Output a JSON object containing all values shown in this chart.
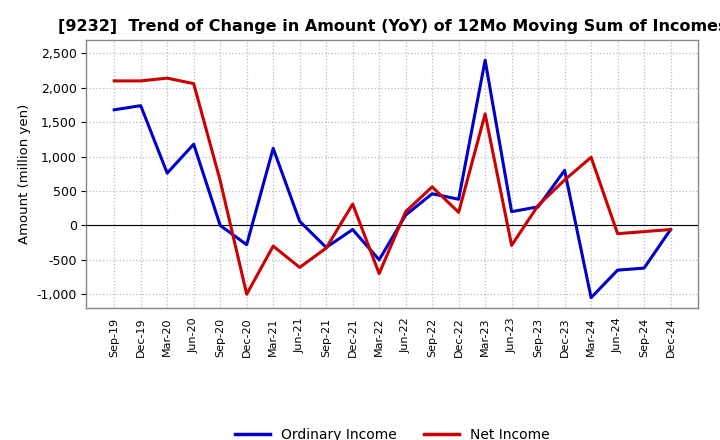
{
  "title": "[9232]  Trend of Change in Amount (YoY) of 12Mo Moving Sum of Incomes",
  "ylabel": "Amount (million yen)",
  "labels": [
    "Sep-19",
    "Dec-19",
    "Mar-20",
    "Jun-20",
    "Sep-20",
    "Dec-20",
    "Mar-21",
    "Jun-21",
    "Sep-21",
    "Dec-21",
    "Mar-22",
    "Jun-22",
    "Sep-22",
    "Dec-22",
    "Mar-23",
    "Jun-23",
    "Sep-23",
    "Dec-23",
    "Mar-24",
    "Jun-24",
    "Sep-24",
    "Dec-24"
  ],
  "ordinary_income": [
    1680,
    1740,
    760,
    1180,
    0,
    -280,
    1120,
    60,
    -320,
    -60,
    -500,
    150,
    460,
    380,
    2400,
    200,
    270,
    800,
    -1050,
    -650,
    -620,
    -60
  ],
  "net_income": [
    2100,
    2100,
    2140,
    2060,
    650,
    -1000,
    -300,
    -610,
    -330,
    310,
    -700,
    200,
    560,
    190,
    1620,
    -290,
    290,
    660,
    990,
    -120,
    -90,
    -60
  ],
  "ordinary_color": "#0000cc",
  "net_color": "#cc0000",
  "ylim": [
    -1200,
    2700
  ],
  "yticks": [
    -1000,
    -500,
    0,
    500,
    1000,
    1500,
    2000,
    2500
  ],
  "background_color": "#ffffff",
  "plot_bg_color": "#f0f0f0",
  "grid_color": "#bbbbbb",
  "legend_ordinary": "Ordinary Income",
  "legend_net": "Net Income"
}
